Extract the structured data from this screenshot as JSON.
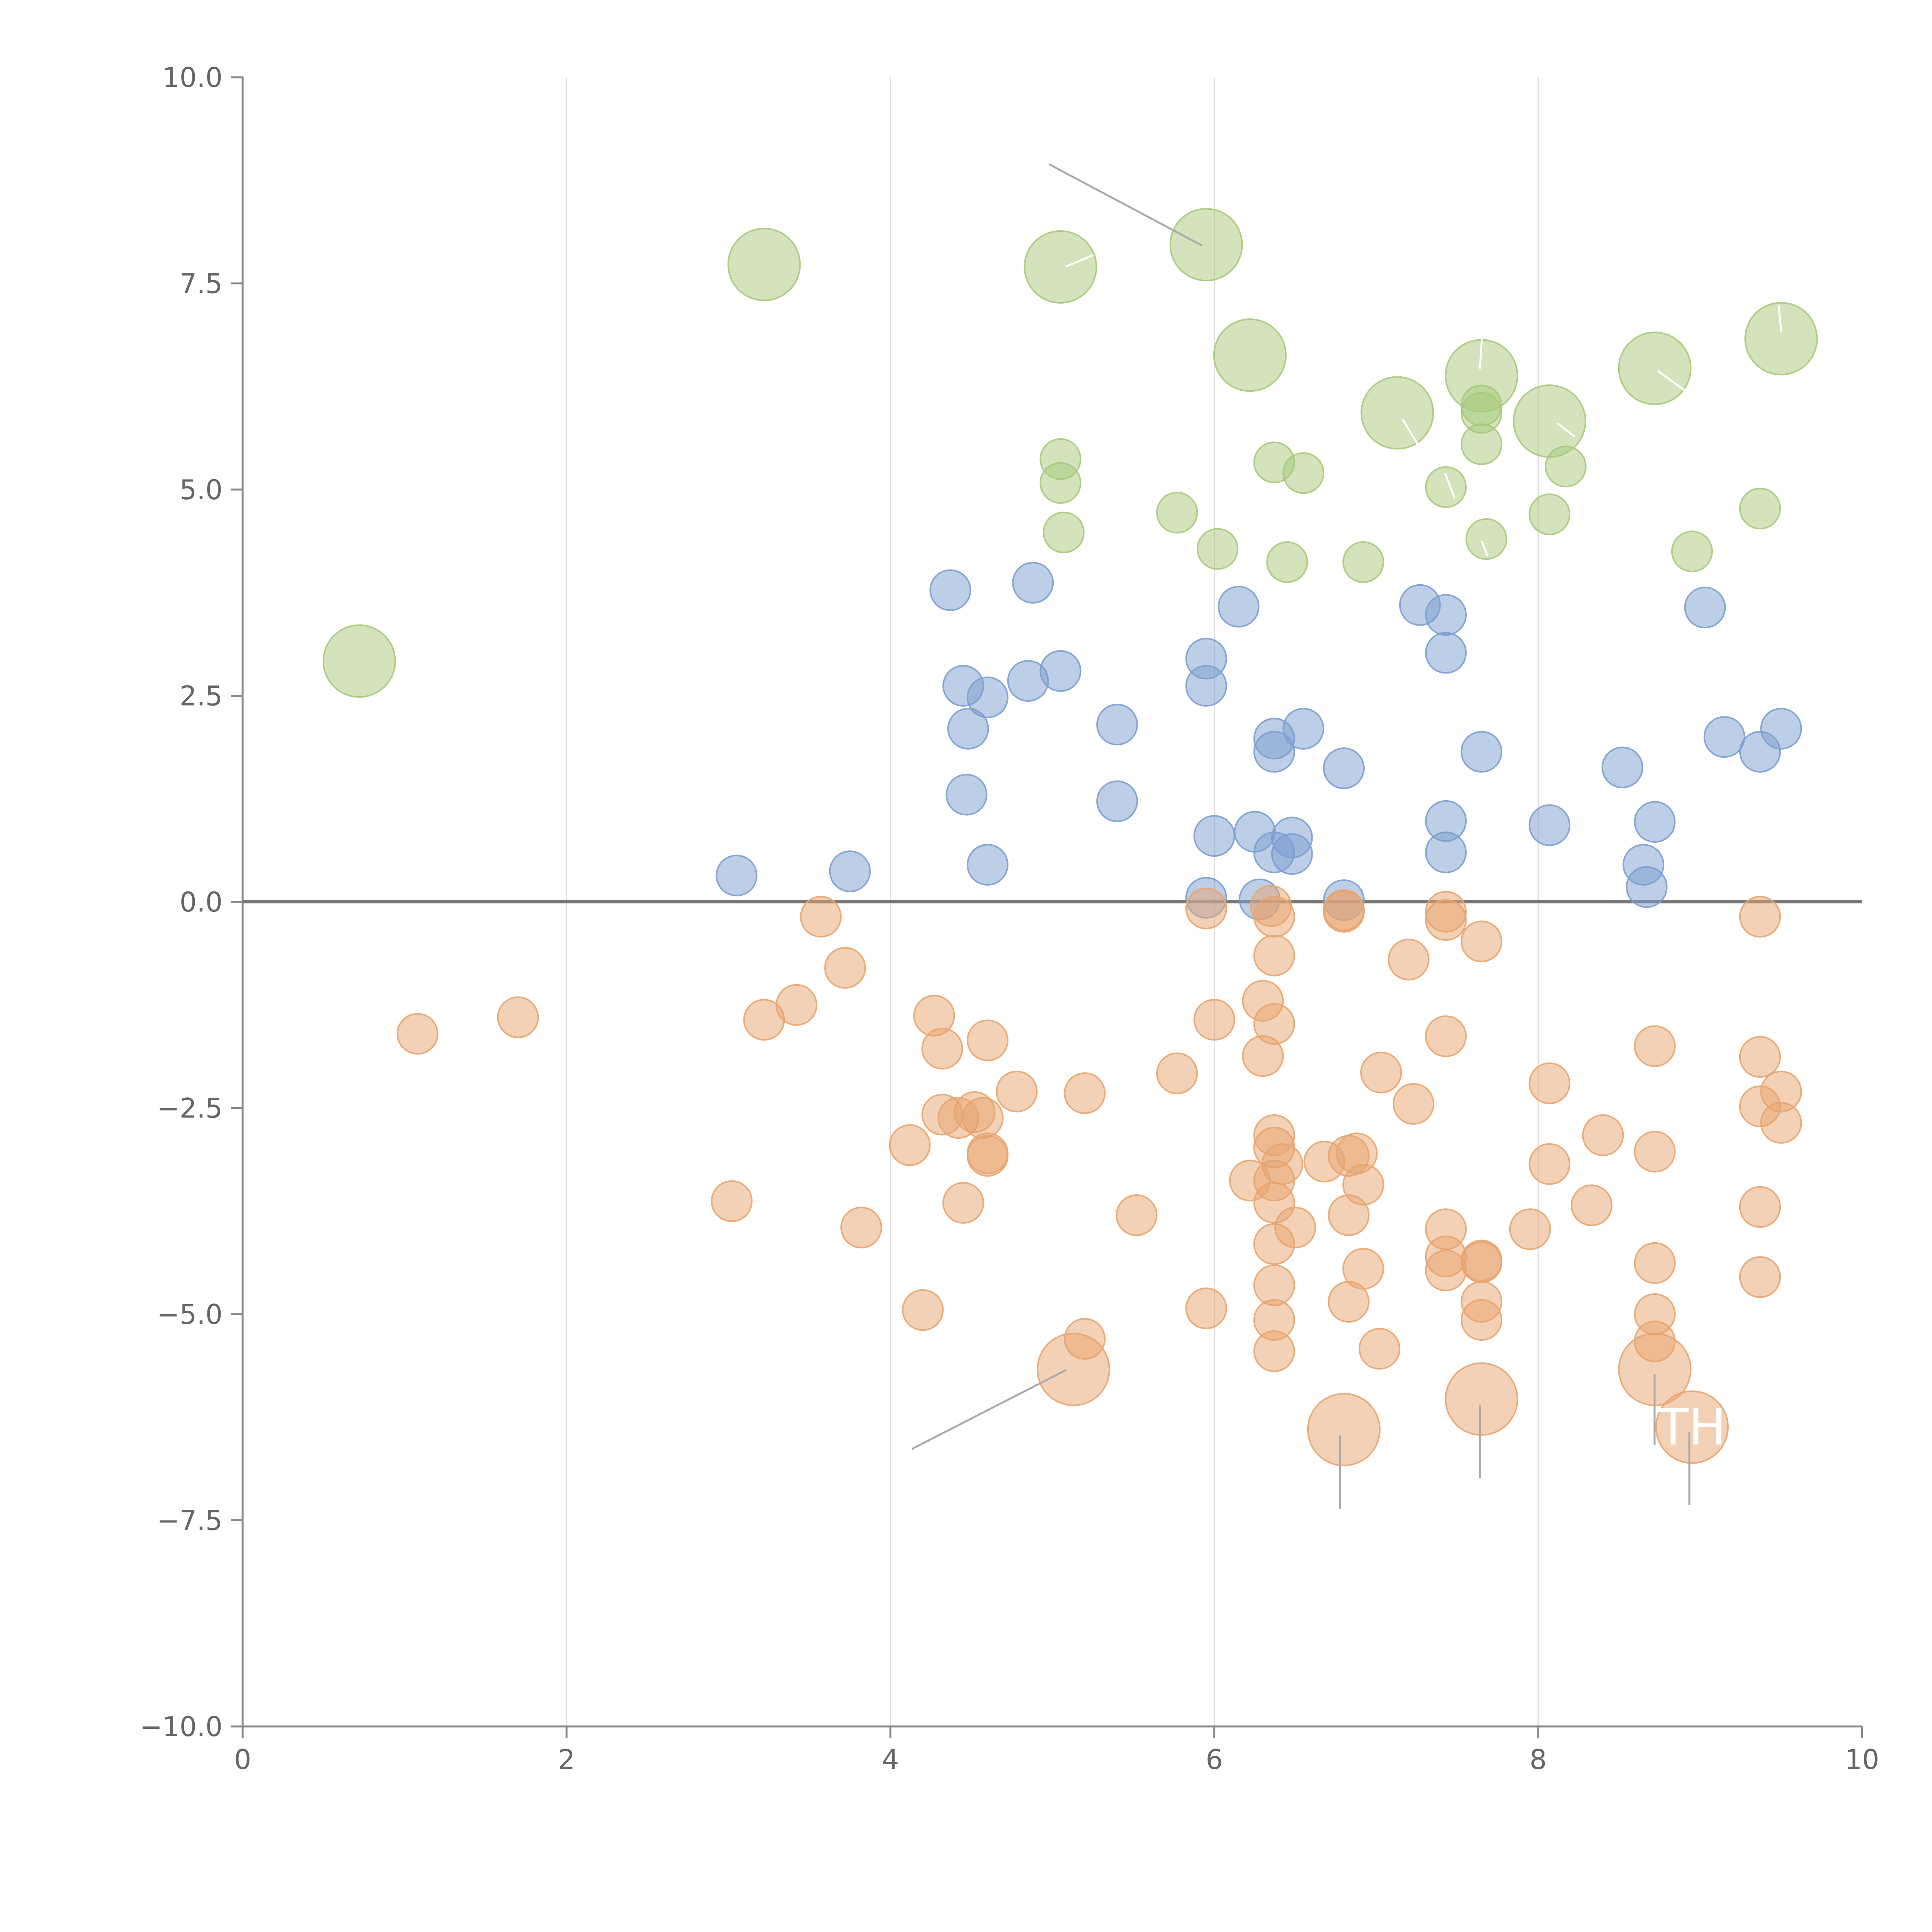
{
  "chart_data": {
    "type": "scatter",
    "title": "",
    "xlabel": "",
    "ylabel": "",
    "xlim": [
      0,
      10
    ],
    "ylim": [
      -10,
      10
    ],
    "grid": "vertical",
    "x_ticks": [
      0,
      2,
      4,
      6,
      8,
      10
    ],
    "y_ticks": [
      -10.0,
      -7.5,
      -5.0,
      -2.5,
      0.0,
      2.5,
      5.0,
      7.5,
      10.0
    ],
    "x_tick_labels": [
      "0",
      "2",
      "4",
      "6",
      "8",
      "10"
    ],
    "y_tick_labels": [
      "−10.0",
      "−7.5",
      "−5.0",
      "−2.5",
      "0.0",
      "2.5",
      "5.0",
      "7.5",
      "10.0"
    ],
    "baseline_y": 0,
    "colors": {
      "green": "#a7c97a",
      "blue": "#7b9ed0",
      "orange": "#e8a46e",
      "axis": "#888888",
      "grid": "#dddddd",
      "baseline": "#777777",
      "leader": "#aaaaaa"
    },
    "series": [
      {
        "name": "green",
        "color": "#a7c97a",
        "points": [
          [
            0.72,
            2.92,
            2
          ],
          [
            3.22,
            7.73,
            2
          ],
          [
            5.05,
            7.7,
            2
          ],
          [
            5.95,
            7.97,
            2
          ],
          [
            6.22,
            6.63,
            2
          ],
          [
            7.13,
            5.93,
            2
          ],
          [
            7.65,
            6.38,
            2
          ],
          [
            8.07,
            5.83,
            2
          ],
          [
            8.72,
            6.47,
            2
          ],
          [
            9.5,
            6.83,
            2
          ],
          [
            5.05,
            5.37,
            1
          ],
          [
            5.05,
            5.08,
            1
          ],
          [
            5.07,
            4.48,
            1
          ],
          [
            5.77,
            4.72,
            1
          ],
          [
            6.02,
            4.28,
            1
          ],
          [
            6.37,
            5.33,
            1
          ],
          [
            6.45,
            4.12,
            1
          ],
          [
            6.55,
            5.2,
            1
          ],
          [
            6.92,
            4.12,
            1
          ],
          [
            7.43,
            5.03,
            1
          ],
          [
            7.65,
            5.93,
            1
          ],
          [
            7.65,
            5.55,
            1
          ],
          [
            7.68,
            4.4,
            1
          ],
          [
            8.07,
            4.7,
            1
          ],
          [
            8.17,
            5.28,
            1
          ],
          [
            8.95,
            4.25,
            1
          ],
          [
            9.37,
            4.77,
            1
          ],
          [
            7.65,
            6.02,
            1
          ]
        ]
      },
      {
        "name": "blue",
        "color": "#7b9ed0",
        "points": [
          [
            3.05,
            0.32,
            1
          ],
          [
            3.75,
            0.37,
            1
          ],
          [
            4.37,
            3.78,
            1
          ],
          [
            4.45,
            2.62,
            1
          ],
          [
            4.48,
            2.1,
            1
          ],
          [
            4.6,
            2.48,
            1
          ],
          [
            4.47,
            1.3,
            1
          ],
          [
            4.6,
            0.45,
            1
          ],
          [
            4.85,
            2.68,
            1
          ],
          [
            4.88,
            3.87,
            1
          ],
          [
            5.05,
            2.8,
            1
          ],
          [
            5.4,
            2.15,
            1
          ],
          [
            5.4,
            1.22,
            1
          ],
          [
            5.95,
            2.95,
            1
          ],
          [
            5.95,
            2.62,
            1
          ],
          [
            6.0,
            0.8,
            1
          ],
          [
            6.15,
            3.58,
            1
          ],
          [
            6.25,
            0.85,
            1
          ],
          [
            6.37,
            1.98,
            1
          ],
          [
            6.37,
            1.82,
            1
          ],
          [
            6.37,
            0.6,
            1
          ],
          [
            6.48,
            0.78,
            1
          ],
          [
            6.48,
            0.58,
            1
          ],
          [
            6.55,
            2.1,
            1
          ],
          [
            5.95,
            0.05,
            1
          ],
          [
            6.28,
            0.03,
            1
          ],
          [
            6.8,
            1.62,
            1
          ],
          [
            6.8,
            0.02,
            1
          ],
          [
            7.27,
            3.6,
            1
          ],
          [
            7.43,
            3.48,
            1
          ],
          [
            7.43,
            3.02,
            1
          ],
          [
            7.43,
            0.98,
            1
          ],
          [
            7.43,
            0.6,
            1
          ],
          [
            7.65,
            1.82,
            1
          ],
          [
            8.07,
            0.93,
            1
          ],
          [
            8.52,
            1.63,
            1
          ],
          [
            8.65,
            0.45,
            1
          ],
          [
            8.67,
            0.18,
            1
          ],
          [
            8.72,
            0.97,
            1
          ],
          [
            9.03,
            3.57,
            1
          ],
          [
            9.15,
            2.0,
            1
          ],
          [
            9.37,
            1.82,
            1
          ],
          [
            9.5,
            2.1,
            1
          ]
        ]
      },
      {
        "name": "orange",
        "color": "#e8a46e",
        "points": [
          [
            1.08,
            -1.6,
            1
          ],
          [
            1.7,
            -1.4,
            1
          ],
          [
            3.02,
            -3.63,
            1
          ],
          [
            3.22,
            -1.43,
            1
          ],
          [
            3.42,
            -1.25,
            1
          ],
          [
            3.57,
            -0.18,
            1
          ],
          [
            3.72,
            -0.8,
            1
          ],
          [
            3.82,
            -3.95,
            1
          ],
          [
            4.12,
            -2.95,
            1
          ],
          [
            4.2,
            -4.95,
            1
          ],
          [
            4.27,
            -1.38,
            1
          ],
          [
            4.32,
            -1.78,
            1
          ],
          [
            4.32,
            -2.58,
            1
          ],
          [
            4.42,
            -2.62,
            1
          ],
          [
            4.45,
            -3.65,
            1
          ],
          [
            4.52,
            -2.55,
            1
          ],
          [
            4.57,
            -2.62,
            1
          ],
          [
            4.6,
            -1.68,
            1
          ],
          [
            4.6,
            -3.05,
            1
          ],
          [
            4.6,
            -3.08,
            1
          ],
          [
            4.78,
            -2.3,
            1
          ],
          [
            5.2,
            -5.3,
            1
          ],
          [
            5.2,
            -2.32,
            1
          ],
          [
            5.52,
            -3.8,
            1
          ],
          [
            5.77,
            -2.08,
            1
          ],
          [
            5.95,
            -0.08,
            1
          ],
          [
            5.95,
            -4.93,
            1
          ],
          [
            6.0,
            -1.43,
            1
          ],
          [
            6.22,
            -3.38,
            1
          ],
          [
            6.3,
            -1.2,
            1
          ],
          [
            6.3,
            -1.87,
            1
          ],
          [
            6.35,
            -0.05,
            1
          ],
          [
            6.37,
            -0.18,
            1
          ],
          [
            6.37,
            -0.65,
            1
          ],
          [
            6.37,
            -1.48,
            1
          ],
          [
            6.37,
            -2.83,
            1
          ],
          [
            6.37,
            -2.98,
            1
          ],
          [
            6.37,
            -3.38,
            1
          ],
          [
            6.37,
            -3.65,
            1
          ],
          [
            6.37,
            -4.15,
            1
          ],
          [
            6.37,
            -4.65,
            1
          ],
          [
            6.37,
            -5.07,
            1
          ],
          [
            6.37,
            -5.45,
            1
          ],
          [
            6.42,
            -3.18,
            1
          ],
          [
            6.5,
            -3.95,
            1
          ],
          [
            6.68,
            -3.15,
            1
          ],
          [
            6.8,
            -0.1,
            1
          ],
          [
            6.8,
            -0.12,
            1
          ],
          [
            6.83,
            -3.08,
            1
          ],
          [
            6.83,
            -3.8,
            1
          ],
          [
            6.83,
            -4.85,
            1
          ],
          [
            6.88,
            -3.05,
            1
          ],
          [
            6.92,
            -3.43,
            1
          ],
          [
            6.92,
            -4.45,
            1
          ],
          [
            7.02,
            -5.42,
            1
          ],
          [
            7.03,
            -2.07,
            1
          ],
          [
            7.2,
            -0.7,
            1
          ],
          [
            7.23,
            -2.45,
            1
          ],
          [
            7.43,
            -0.12,
            1
          ],
          [
            7.43,
            -0.22,
            1
          ],
          [
            7.43,
            -1.63,
            1
          ],
          [
            7.43,
            -3.97,
            1
          ],
          [
            7.43,
            -4.3,
            1
          ],
          [
            7.43,
            -4.47,
            1
          ],
          [
            7.65,
            -0.48,
            1
          ],
          [
            7.65,
            -4.35,
            1
          ],
          [
            7.65,
            -4.37,
            1
          ],
          [
            7.65,
            -4.85,
            1
          ],
          [
            7.65,
            -5.07,
            1
          ],
          [
            7.95,
            -3.97,
            1
          ],
          [
            8.07,
            -2.2,
            1
          ],
          [
            8.07,
            -3.18,
            1
          ],
          [
            8.33,
            -3.68,
            1
          ],
          [
            8.4,
            -2.83,
            1
          ],
          [
            8.72,
            -1.75,
            1
          ],
          [
            8.72,
            -3.03,
            1
          ],
          [
            8.72,
            -4.38,
            1
          ],
          [
            8.72,
            -5.0,
            1
          ],
          [
            8.72,
            -5.33,
            1
          ],
          [
            9.37,
            -0.18,
            1
          ],
          [
            9.37,
            -1.88,
            1
          ],
          [
            9.37,
            -2.48,
            1
          ],
          [
            9.37,
            -3.7,
            1
          ],
          [
            9.37,
            -4.55,
            1
          ],
          [
            9.5,
            -2.3,
            1
          ],
          [
            9.5,
            -2.68,
            1
          ],
          [
            5.13,
            -5.67,
            2
          ],
          [
            6.8,
            -6.4,
            2
          ],
          [
            7.65,
            -6.03,
            2
          ],
          [
            8.72,
            -5.67,
            2
          ],
          [
            8.95,
            -6.37,
            2
          ]
        ]
      }
    ],
    "annotations": [
      {
        "text": "TH",
        "x": 8.95,
        "y": -6.37
      }
    ]
  }
}
